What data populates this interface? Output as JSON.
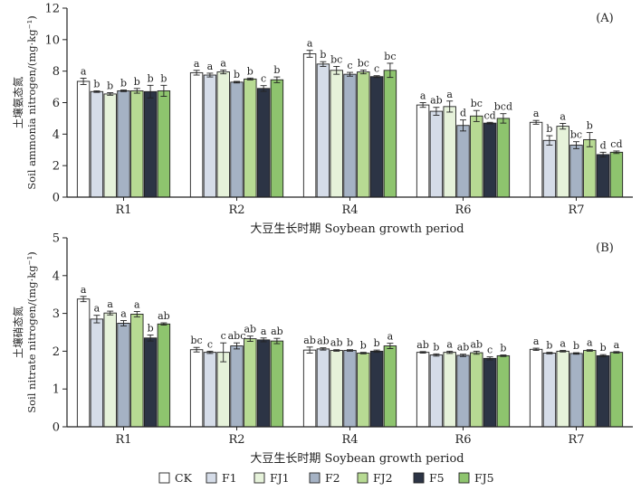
{
  "legend": [
    {
      "label": "CK",
      "color": "#ffffff"
    },
    {
      "label": "F1",
      "color": "#d5dce8"
    },
    {
      "label": "FJ1",
      "color": "#e6f2da"
    },
    {
      "label": "F2",
      "color": "#a5b2c4"
    },
    {
      "label": "FJ2",
      "color": "#b7da93"
    },
    {
      "label": "F5",
      "color": "#2c3445"
    },
    {
      "label": "FJ5",
      "color": "#8ec46e"
    }
  ],
  "chart_data": [
    {
      "type": "bar",
      "panel": "(A)",
      "ylabel_cn": "土壤氨态氮",
      "ylabel_en": "Soil ammonia nitrogen/(mg·kg⁻¹)",
      "xlabel": "大豆生长时期 Soybean growth period",
      "ylim": [
        0,
        12
      ],
      "yticks": [
        "0",
        "2",
        "4",
        "6",
        "8",
        "10",
        "12"
      ],
      "categories": [
        "R1",
        "R2",
        "R4",
        "R6",
        "R7"
      ],
      "series": [
        {
          "name": "CK",
          "values": [
            7.35,
            7.9,
            9.1,
            5.85,
            4.75
          ],
          "errors": [
            0.2,
            0.15,
            0.22,
            0.15,
            0.12
          ],
          "letters": [
            "a",
            "a",
            "a",
            "a",
            "a"
          ]
        },
        {
          "name": "F1",
          "values": [
            6.7,
            7.75,
            8.45,
            5.45,
            3.6
          ],
          "errors": [
            0.05,
            0.12,
            0.15,
            0.25,
            0.3
          ],
          "letters": [
            "b",
            "a",
            "b",
            "ab",
            "b"
          ]
        },
        {
          "name": "FJ1",
          "values": [
            6.55,
            7.95,
            8.05,
            5.75,
            4.5
          ],
          "errors": [
            0.08,
            0.12,
            0.25,
            0.35,
            0.18
          ],
          "letters": [
            "b",
            "a",
            "bc",
            "a",
            "a"
          ]
        },
        {
          "name": "F2",
          "values": [
            6.75,
            7.3,
            7.8,
            4.55,
            3.3
          ],
          "errors": [
            0.05,
            0.05,
            0.12,
            0.35,
            0.22
          ],
          "letters": [
            "b",
            "b",
            "c",
            "d",
            "bc"
          ]
        },
        {
          "name": "FJ2",
          "values": [
            6.75,
            7.5,
            7.95,
            5.15,
            3.65
          ],
          "errors": [
            0.15,
            0.06,
            0.12,
            0.35,
            0.45
          ],
          "letters": [
            "b",
            "b",
            "bc",
            "bc",
            "b"
          ]
        },
        {
          "name": "F5",
          "values": [
            6.7,
            6.9,
            7.65,
            4.7,
            2.7
          ],
          "errors": [
            0.4,
            0.18,
            0.06,
            0.05,
            0.15
          ],
          "letters": [
            "b",
            "c",
            "c",
            "cd",
            "d"
          ]
        },
        {
          "name": "FJ5",
          "values": [
            6.75,
            7.45,
            8.05,
            5.0,
            2.85
          ],
          "errors": [
            0.35,
            0.18,
            0.45,
            0.3,
            0.08
          ],
          "letters": [
            "b",
            "b",
            "bc",
            "bcd",
            "cd"
          ]
        }
      ]
    },
    {
      "type": "bar",
      "panel": "(B)",
      "ylabel_cn": "土壤硝态氮",
      "ylabel_en": "Soil nitrate nitrogen/(mg·kg⁻¹)",
      "xlabel": "大豆生长时期 Soybean growth period",
      "ylim": [
        0,
        5
      ],
      "yticks": [
        "0",
        "1",
        "2",
        "3",
        "4",
        "5"
      ],
      "categories": [
        "R1",
        "R2",
        "R4",
        "R6",
        "R7"
      ],
      "series": [
        {
          "name": "CK",
          "values": [
            3.38,
            2.04,
            2.03,
            1.97,
            2.05
          ],
          "errors": [
            0.07,
            0.06,
            0.08,
            0.02,
            0.03
          ],
          "letters": [
            "a",
            "bc",
            "ab",
            "ab",
            "a"
          ]
        },
        {
          "name": "F1",
          "values": [
            2.85,
            1.97,
            2.06,
            1.9,
            1.95
          ],
          "errors": [
            0.1,
            0.03,
            0.03,
            0.03,
            0.02
          ],
          "letters": [
            "a",
            "c",
            "ab",
            "b",
            "b"
          ]
        },
        {
          "name": "FJ1",
          "values": [
            3.01,
            1.97,
            2.02,
            1.97,
            2.0
          ],
          "errors": [
            0.05,
            0.25,
            0.02,
            0.03,
            0.02
          ],
          "letters": [
            "a",
            "c",
            "ab",
            "a",
            "a"
          ]
        },
        {
          "name": "F2",
          "values": [
            2.74,
            2.14,
            2.02,
            1.89,
            1.94
          ],
          "errors": [
            0.07,
            0.08,
            0.02,
            0.03,
            0.02
          ],
          "letters": [
            "a",
            "abc",
            "b",
            "ab",
            "b"
          ]
        },
        {
          "name": "FJ2",
          "values": [
            2.98,
            2.33,
            1.95,
            1.96,
            2.02
          ],
          "errors": [
            0.07,
            0.07,
            0.02,
            0.04,
            0.02
          ],
          "letters": [
            "a",
            "ab",
            "b",
            "ab",
            "a"
          ]
        },
        {
          "name": "F5",
          "values": [
            2.35,
            2.3,
            2.0,
            1.81,
            1.88
          ],
          "errors": [
            0.08,
            0.05,
            0.03,
            0.04,
            0.03
          ],
          "letters": [
            "b",
            "a",
            "b",
            "c",
            "b"
          ]
        },
        {
          "name": "FJ5",
          "values": [
            2.72,
            2.27,
            2.14,
            1.88,
            1.97
          ],
          "errors": [
            0.03,
            0.07,
            0.07,
            0.02,
            0.02
          ],
          "letters": [
            "ab",
            "ab",
            "a",
            "b",
            "a"
          ]
        }
      ]
    }
  ]
}
